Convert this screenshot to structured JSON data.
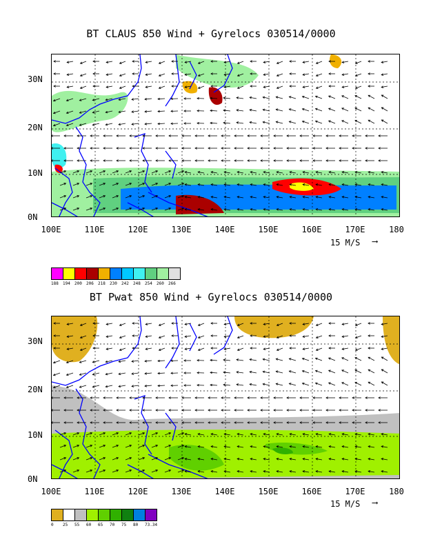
{
  "top": {
    "title": "BT CLAUS 850 Wind + Gyrelocs 030514/0000",
    "lat_labels": [
      "30N",
      "20N",
      "10N",
      "0N"
    ],
    "lon_labels": [
      "100E",
      "110E",
      "120E",
      "130E",
      "140E",
      "150E",
      "160E",
      "170E",
      "180"
    ],
    "ref_vector": "15 M/S",
    "legend_colors": [
      "#ff00ff",
      "#ffff00",
      "#ff0000",
      "#aa0000",
      "#f0b000",
      "#0080ff",
      "#00c8ff",
      "#40f0f0",
      "#60d080",
      "#a0f0a0",
      "#e0e0e0"
    ],
    "legend_labels": [
      "188",
      "194",
      "200",
      "206",
      "218",
      "230",
      "242",
      "248",
      "254",
      "260",
      "266"
    ]
  },
  "bottom": {
    "title": "BT Pwat 850 Wind + Gyrelocs 030514/0000",
    "lat_labels": [
      "30N",
      "20N",
      "10N",
      "0N"
    ],
    "lon_labels": [
      "100E",
      "110E",
      "120E",
      "130E",
      "140E",
      "150E",
      "160E",
      "170E",
      "180"
    ],
    "ref_vector": "15 M/S",
    "legend_colors": [
      "#e0b020",
      "#ffffff",
      "#c0c0c0",
      "#a0f000",
      "#60d000",
      "#30b000",
      "#108010",
      "#0080e0",
      "#8000c0"
    ],
    "legend_labels": [
      "0",
      "25",
      "55",
      "60",
      "65",
      "70",
      "75",
      "80",
      "73.34"
    ]
  }
}
